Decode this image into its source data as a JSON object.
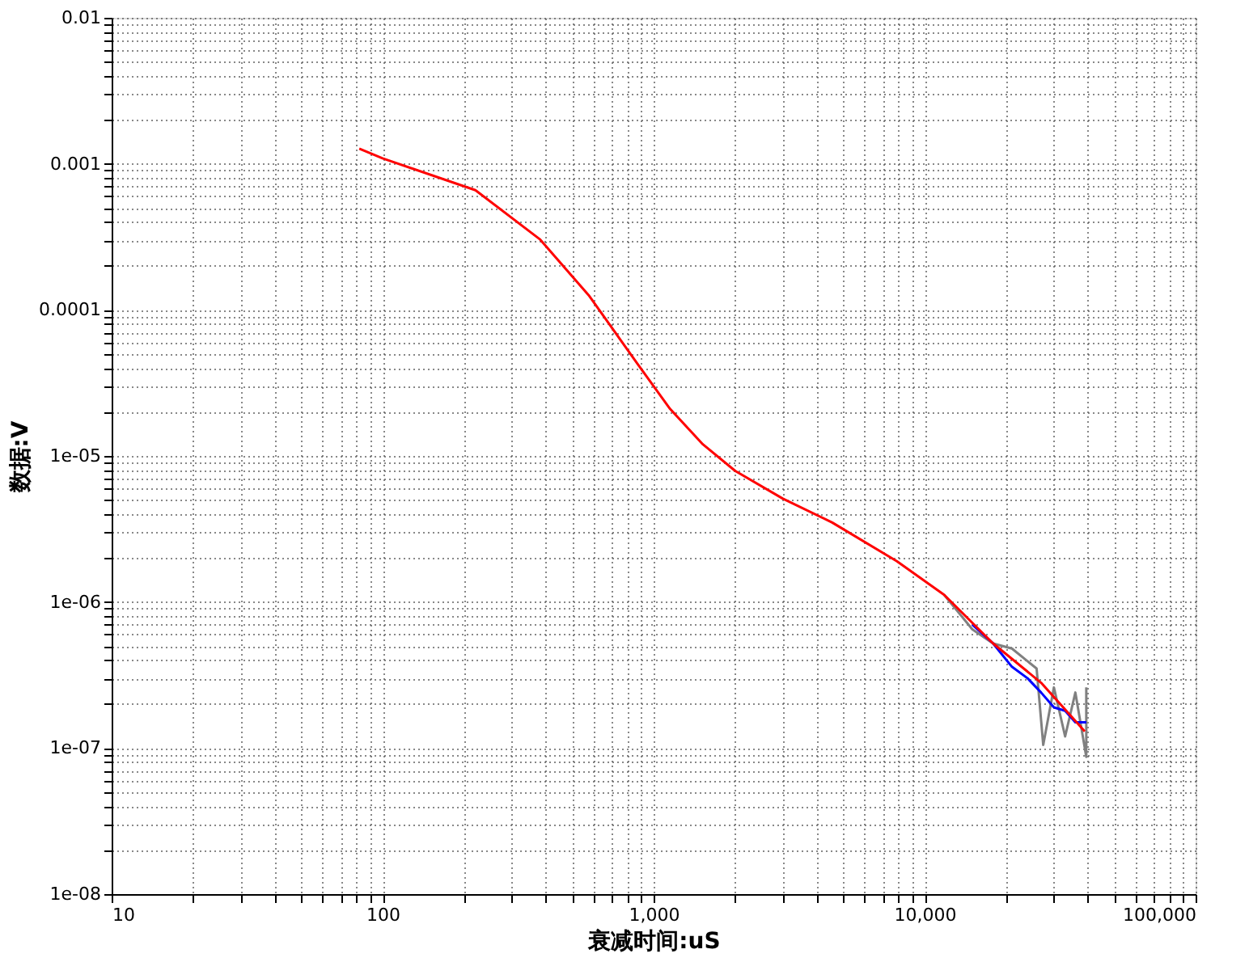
{
  "chart_data": {
    "type": "line",
    "xlabel": "衰减时间:uS",
    "ylabel": "数据:V",
    "log": "xy",
    "grid": true,
    "marker": "none",
    "line_style": "solid",
    "xlim": [
      10,
      100000
    ],
    "ylim": [
      1e-08,
      0.01
    ],
    "xticks": [
      {
        "value": 10,
        "label": "10"
      },
      {
        "value": 20,
        "label": null
      },
      {
        "value": 30,
        "label": null
      },
      {
        "value": 40,
        "label": null
      },
      {
        "value": 50,
        "label": null
      },
      {
        "value": 60,
        "label": null
      },
      {
        "value": 70,
        "label": null
      },
      {
        "value": 80,
        "label": null
      },
      {
        "value": 90,
        "label": null
      },
      {
        "value": 100,
        "label": "100"
      },
      {
        "value": 200,
        "label": null
      },
      {
        "value": 300,
        "label": null
      },
      {
        "value": 400,
        "label": null
      },
      {
        "value": 500,
        "label": null
      },
      {
        "value": 600,
        "label": null
      },
      {
        "value": 700,
        "label": null
      },
      {
        "value": 800,
        "label": null
      },
      {
        "value": 900,
        "label": null
      },
      {
        "value": 1000,
        "label": "1,000"
      },
      {
        "value": 2000,
        "label": null
      },
      {
        "value": 3000,
        "label": null
      },
      {
        "value": 4000,
        "label": null
      },
      {
        "value": 5000,
        "label": null
      },
      {
        "value": 6000,
        "label": null
      },
      {
        "value": 7000,
        "label": null
      },
      {
        "value": 8000,
        "label": null
      },
      {
        "value": 9000,
        "label": null
      },
      {
        "value": 10000,
        "label": "10,000"
      },
      {
        "value": 20000,
        "label": null
      },
      {
        "value": 30000,
        "label": null
      },
      {
        "value": 40000,
        "label": null
      },
      {
        "value": 50000,
        "label": null
      },
      {
        "value": 60000,
        "label": null
      },
      {
        "value": 70000,
        "label": null
      },
      {
        "value": 80000,
        "label": null
      },
      {
        "value": 90000,
        "label": null
      },
      {
        "value": 100000,
        "label": "100,000"
      }
    ],
    "yticks": [
      {
        "value": 1e-08,
        "label": "1e-08"
      },
      {
        "value": 2e-08,
        "label": null
      },
      {
        "value": 3e-08,
        "label": null
      },
      {
        "value": 4e-08,
        "label": null
      },
      {
        "value": 5e-08,
        "label": null
      },
      {
        "value": 6e-08,
        "label": null
      },
      {
        "value": 7e-08,
        "label": null
      },
      {
        "value": 8e-08,
        "label": null
      },
      {
        "value": 9e-08,
        "label": null
      },
      {
        "value": 1e-07,
        "label": "1e-07"
      },
      {
        "value": 2e-07,
        "label": null
      },
      {
        "value": 3e-07,
        "label": null
      },
      {
        "value": 4e-07,
        "label": null
      },
      {
        "value": 5e-07,
        "label": null
      },
      {
        "value": 6e-07,
        "label": null
      },
      {
        "value": 7e-07,
        "label": null
      },
      {
        "value": 8e-07,
        "label": null
      },
      {
        "value": 9e-07,
        "label": null
      },
      {
        "value": 1e-06,
        "label": "1e-06"
      },
      {
        "value": 2e-06,
        "label": null
      },
      {
        "value": 3e-06,
        "label": null
      },
      {
        "value": 4e-06,
        "label": null
      },
      {
        "value": 5e-06,
        "label": null
      },
      {
        "value": 6e-06,
        "label": null
      },
      {
        "value": 7e-06,
        "label": null
      },
      {
        "value": 8e-06,
        "label": null
      },
      {
        "value": 9e-06,
        "label": null
      },
      {
        "value": 1e-05,
        "label": "1e-05"
      },
      {
        "value": 2e-05,
        "label": null
      },
      {
        "value": 3e-05,
        "label": null
      },
      {
        "value": 4e-05,
        "label": null
      },
      {
        "value": 5e-05,
        "label": null
      },
      {
        "value": 6e-05,
        "label": null
      },
      {
        "value": 7e-05,
        "label": null
      },
      {
        "value": 8e-05,
        "label": null
      },
      {
        "value": 9e-05,
        "label": null
      },
      {
        "value": 0.0001,
        "label": "0.0001"
      },
      {
        "value": 0.0002,
        "label": null
      },
      {
        "value": 0.0003,
        "label": null
      },
      {
        "value": 0.0004,
        "label": null
      },
      {
        "value": 0.0005,
        "label": null
      },
      {
        "value": 0.0006,
        "label": null
      },
      {
        "value": 0.0007,
        "label": null
      },
      {
        "value": 0.0008,
        "label": null
      },
      {
        "value": 0.0009,
        "label": null
      },
      {
        "value": 0.001,
        "label": "0.001"
      },
      {
        "value": 0.002,
        "label": null
      },
      {
        "value": 0.003,
        "label": null
      },
      {
        "value": 0.004,
        "label": null
      },
      {
        "value": 0.005,
        "label": null
      },
      {
        "value": 0.006,
        "label": null
      },
      {
        "value": 0.007,
        "label": null
      },
      {
        "value": 0.008,
        "label": null
      },
      {
        "value": 0.009,
        "label": null
      },
      {
        "value": 0.01,
        "label": "0.01"
      }
    ],
    "series": [
      {
        "color": "#808080",
        "x": [
          11800,
          15000,
          17900,
          21000,
          25900,
          27400,
          30000,
          33000,
          36000,
          39500,
          39500
        ],
        "values": [
          1.12e-06,
          6.5e-07,
          5.2e-07,
          4.8e-07,
          3.5e-07,
          1.05e-07,
          2.6e-07,
          1.2e-07,
          2.4e-07,
          8.7e-08,
          2.6e-07
        ]
      },
      {
        "color": "#0000ff",
        "x": [
          15000,
          17900,
          21000,
          24000,
          26900,
          30000,
          33000,
          36000,
          39500
        ],
        "values": [
          7e-07,
          5.2e-07,
          3.6e-07,
          3e-07,
          2.4e-07,
          1.9e-07,
          1.8e-07,
          1.5e-07,
          1.5e-07
        ]
      },
      {
        "color": "#ff0000",
        "x": [
          82,
          100,
          220,
          380,
          576,
          870,
          1150,
          1520,
          2000,
          3000,
          4560,
          7900,
          11800,
          17900,
          26900,
          39000
        ],
        "values": [
          0.00127,
          0.00109,
          0.00066,
          0.000305,
          0.000126,
          4.3e-05,
          2.1e-05,
          1.2e-05,
          7.9e-06,
          5.1e-06,
          3.5e-06,
          1.9e-06,
          1.12e-06,
          5.2e-07,
          2.8e-07,
          1.3e-07
        ]
      }
    ]
  }
}
